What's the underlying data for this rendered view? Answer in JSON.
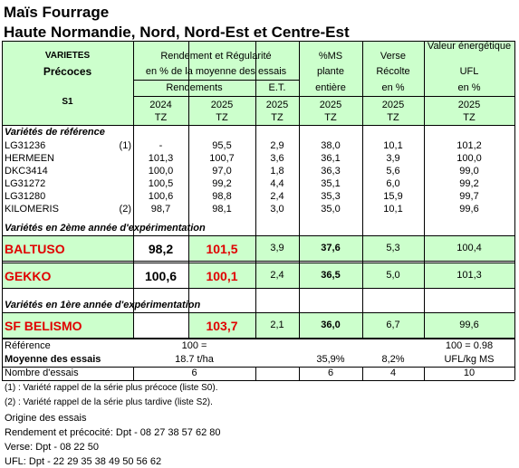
{
  "title": "Maïs Fourrage",
  "subtitle": "Haute Normandie, Nord, Nord-Est et Centre-Est",
  "header": {
    "varietes": "VARIETES",
    "group": "Précoces",
    "series": "S1",
    "rendement_title": "Rendement et Régularité",
    "rendement_sub": "en % de la moyenne des essais",
    "rendements": "Rendements",
    "et": "E.T.",
    "ms": [
      "%MS",
      "plante",
      "entière"
    ],
    "verse": [
      "Verse",
      "Récolte",
      "en %"
    ],
    "ufl": [
      "Valeur énergétique",
      "UFL",
      "en %"
    ],
    "years": [
      "2024",
      "2025",
      "2025",
      "2025",
      "2025",
      "2025"
    ],
    "sites": [
      "TZ",
      "TZ",
      "TZ",
      "TZ",
      "TZ",
      "TZ"
    ]
  },
  "sections": [
    {
      "title": "Variétés de référence",
      "rows": [
        {
          "name": "LG31236",
          "note": "(1)",
          "values": [
            "-",
            "95,5",
            "2,9",
            "38,0",
            "10,1",
            "101,2"
          ]
        },
        {
          "name": "HERMEEN",
          "values": [
            "101,3",
            "100,7",
            "3,6",
            "36,1",
            "3,9",
            "100,0"
          ]
        },
        {
          "name": "DKC3414",
          "values": [
            "100,0",
            "97,0",
            "1,8",
            "36,3",
            "5,6",
            "99,0"
          ]
        },
        {
          "name": "LG31272",
          "values": [
            "100,5",
            "99,2",
            "4,4",
            "35,1",
            "6,0",
            "99,2"
          ]
        },
        {
          "name": "LG31280",
          "values": [
            "100,6",
            "98,8",
            "2,4",
            "35,3",
            "15,9",
            "99,7"
          ]
        },
        {
          "name": "KILOMERIS",
          "note": "(2)",
          "values": [
            "98,7",
            "98,1",
            "3,0",
            "35,0",
            "10,1",
            "99,6"
          ]
        }
      ]
    },
    {
      "title": "Variétés en 2ème année d'expérimentation",
      "rows": [
        {
          "name": "BALTUSO",
          "values": [
            "98,2",
            "101,5",
            "3,9",
            "37,6",
            "5,3",
            "100,4"
          ]
        },
        {
          "name": "GEKKO",
          "values": [
            "100,6",
            "100,1",
            "2,4",
            "36,5",
            "5,0",
            "101,3"
          ]
        }
      ]
    },
    {
      "title": "Variétés en 1ère année d'expérimentation",
      "rows": [
        {
          "name": "SF BELISMO",
          "values": [
            null,
            "103,7",
            "2,1",
            "36,0",
            "6,7",
            "99,6"
          ]
        }
      ]
    }
  ],
  "summary": [
    {
      "label": "Référence",
      "rendement": "100 =",
      "ufl": "100 = 0.98"
    },
    {
      "label": "Moyenne des essais",
      "rendement": "18.7 t/ha",
      "ms": "35,9%",
      "verse": "8,2%",
      "ufl": "UFL/kg MS"
    },
    {
      "label": "Nombre d'essais",
      "rendement": "6",
      "ms": "6",
      "verse": "4",
      "ufl": "10"
    }
  ],
  "footnotes": [
    "(1) : Variété rappel de la série plus précoce (liste S0).",
    "(2) : Variété rappel de la série plus tardive (liste S2)."
  ],
  "origin": [
    "Origine des essais",
    "Rendement et précocité: Dpt - 08 27 38 57 62 80",
    "Verse: Dpt - 08 22 50",
    "UFL: Dpt - 22 29 35 38 49 50 56 62"
  ]
}
